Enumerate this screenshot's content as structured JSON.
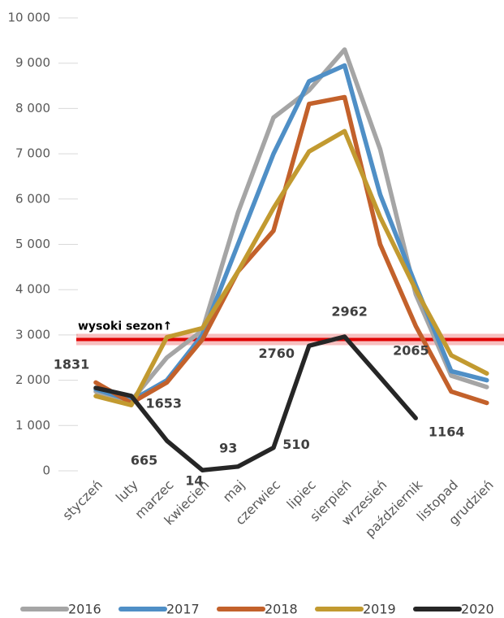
{
  "chart_data": {
    "type": "line",
    "categories": [
      "styczeń",
      "luty",
      "marzec",
      "kwiecień",
      "maj",
      "czerwiec",
      "lipiec",
      "sierpień",
      "wrzesień",
      "październik",
      "listopad",
      "grudzień"
    ],
    "series": [
      {
        "name": "2016",
        "color": "#a5a5a5",
        "values": [
          1750,
          1550,
          2500,
          3100,
          5700,
          7800,
          8400,
          9300,
          7100,
          3900,
          2100,
          1850
        ]
      },
      {
        "name": "2017",
        "color": "#4f8fc6",
        "values": [
          1800,
          1550,
          2000,
          3000,
          5000,
          7000,
          8600,
          8950,
          6100,
          4100,
          2200,
          2000
        ]
      },
      {
        "name": "2018",
        "color": "#c3612b",
        "values": [
          1950,
          1500,
          1950,
          2900,
          4400,
          5300,
          8100,
          8250,
          5000,
          3200,
          1750,
          1500
        ]
      },
      {
        "name": "2019",
        "color": "#c29a30",
        "values": [
          1650,
          1450,
          2950,
          3150,
          4400,
          5800,
          7050,
          7500,
          5600,
          4000,
          2550,
          2150
        ]
      },
      {
        "name": "2020",
        "color": "#262626",
        "values": [
          1831,
          1653,
          665,
          14,
          93,
          510,
          2760,
          2962,
          2065,
          1164,
          null,
          null
        ],
        "data_labels": true
      }
    ],
    "ylim": [
      0,
      10000
    ],
    "yticks": [
      0,
      {
        "value": 1000,
        "label": "1 000"
      },
      {
        "value": 2000,
        "label": "2 000"
      },
      {
        "value": 3000,
        "label": "3 000"
      },
      {
        "value": 4000,
        "label": "4 000"
      },
      {
        "value": 5000,
        "label": "5 000"
      },
      {
        "value": 6000,
        "label": "6 000"
      },
      {
        "value": 7000,
        "label": "7 000"
      },
      {
        "value": 8000,
        "label": "8 000"
      },
      {
        "value": 9000,
        "label": "9 000"
      },
      {
        "value": 10000,
        "label": "10 000"
      }
    ],
    "threshold": {
      "value": 2900,
      "label": "wysoki sezon↑",
      "color": "#e00000"
    },
    "legend": "bottom"
  }
}
